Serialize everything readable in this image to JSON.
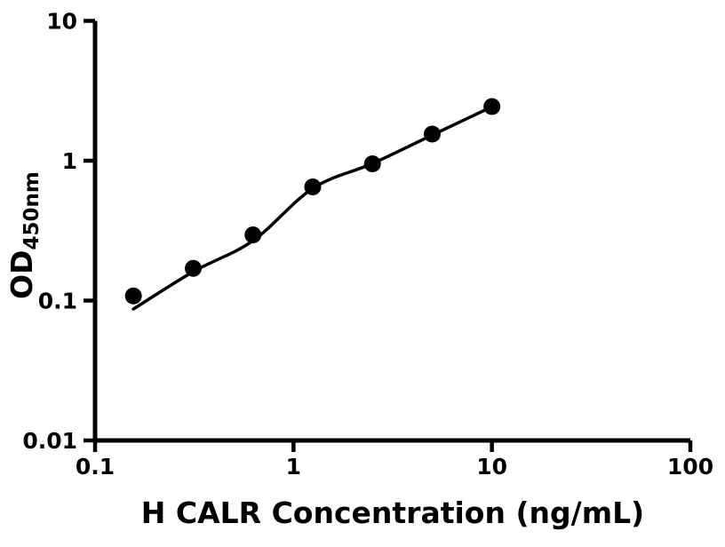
{
  "figure": {
    "background_color": "#ffffff",
    "ink_color": "#000000"
  },
  "chart_data": {
    "type": "scatter",
    "title": "",
    "xlabel": "H CALR Concentration (ng/mL)",
    "ylabel_main": "OD",
    "ylabel_subscript": "450nm",
    "x_scale": "log",
    "y_scale": "log",
    "xlim": [
      0.1,
      100
    ],
    "ylim": [
      0.01,
      10
    ],
    "x_tick_values": [
      0.1,
      1,
      10,
      100
    ],
    "x_tick_labels": [
      "0.1",
      "1",
      "10",
      "100"
    ],
    "y_tick_values": [
      0.01,
      0.1,
      1,
      10
    ],
    "y_tick_labels": [
      "0.01",
      "0.1",
      "1",
      "10"
    ],
    "grid": false,
    "legend": false,
    "series": [
      {
        "name": "standard-data-points",
        "kind": "scatter",
        "marker": "filled-circle",
        "color": "#000000",
        "x": [
          0.156,
          0.3125,
          0.625,
          1.25,
          2.5,
          5,
          10
        ],
        "y": [
          0.108,
          0.17,
          0.295,
          0.65,
          0.95,
          1.55,
          2.44
        ]
      },
      {
        "name": "fitted-curve",
        "kind": "line",
        "color": "#000000",
        "x": [
          0.156,
          0.3125,
          0.625,
          1.25,
          2.5,
          5,
          10
        ],
        "y": [
          0.087,
          0.161,
          0.268,
          0.634,
          0.955,
          1.525,
          2.43
        ]
      }
    ]
  }
}
